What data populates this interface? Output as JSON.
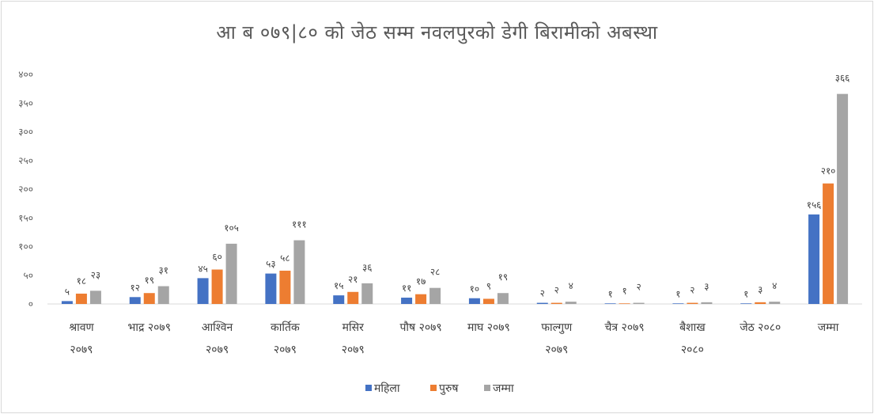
{
  "chart_data": {
    "type": "bar",
    "title": "आ ब ०७९|८० को जेठ सम्म नवलपुरको डेगी बिरामीको अबस्था",
    "categories": [
      [
        "श्रावण",
        "२०७९"
      ],
      [
        "भाद्र २०७९"
      ],
      [
        "आश्विन",
        "२०७९"
      ],
      [
        "कार्तिक",
        "२०७९"
      ],
      [
        "मसिर",
        "२०७९"
      ],
      [
        "पौष २०७९"
      ],
      [
        "माघ २०७९"
      ],
      [
        "फाल्गुण",
        "२०७९"
      ],
      [
        "चैत्र २०७९"
      ],
      [
        "बैशाख",
        "२०८०"
      ],
      [
        "जेठ २०८०"
      ],
      [
        "जम्मा"
      ]
    ],
    "series": [
      {
        "name": "महिला",
        "color": "#4472c4",
        "values": [
          5,
          12,
          45,
          53,
          15,
          11,
          10,
          2,
          1,
          1,
          1,
          156
        ],
        "labels": [
          "५",
          "१२",
          "४५",
          "५३",
          "१५",
          "११",
          "१०",
          "२",
          "१",
          "१",
          "१",
          "१५६"
        ]
      },
      {
        "name": "पुरुष",
        "color": "#ed7d31",
        "values": [
          18,
          19,
          60,
          58,
          21,
          17,
          9,
          2,
          1,
          2,
          3,
          210
        ],
        "labels": [
          "१८",
          "१९",
          "६०",
          "५८",
          "२१",
          "१७",
          "९",
          "२",
          "१",
          "२",
          "३",
          "२१०"
        ]
      },
      {
        "name": "जम्मा",
        "color": "#a5a5a5",
        "values": [
          23,
          31,
          105,
          111,
          36,
          28,
          19,
          4,
          2,
          3,
          4,
          366
        ],
        "labels": [
          "२३",
          "३१",
          "१०५",
          "१११",
          "३६",
          "२८",
          "१९",
          "४",
          "२",
          "३",
          "४",
          "३६६"
        ]
      }
    ],
    "ylim": [
      0,
      400
    ],
    "yticks": [
      0,
      50,
      100,
      150,
      200,
      250,
      300,
      350,
      400
    ],
    "ytick_labels": [
      "०",
      "५०",
      "१००",
      "१५०",
      "२००",
      "२५०",
      "३००",
      "३५०",
      "४००"
    ],
    "grid": false,
    "legend": "bottom"
  }
}
